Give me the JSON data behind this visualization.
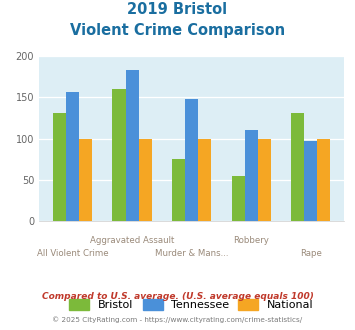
{
  "title_line1": "2019 Bristol",
  "title_line2": "Violent Crime Comparison",
  "bristol": [
    131,
    160,
    75,
    55,
    131
  ],
  "tennessee": [
    157,
    183,
    148,
    111,
    97
  ],
  "national": [
    100,
    100,
    100,
    100,
    100
  ],
  "bristol_color": "#7cba3a",
  "tennessee_color": "#4a90d9",
  "national_color": "#f5a623",
  "ylim": [
    0,
    200
  ],
  "yticks": [
    0,
    50,
    100,
    150,
    200
  ],
  "chart_bg": "#ddeef5",
  "legend_labels": [
    "Bristol",
    "Tennessee",
    "National"
  ],
  "cat_top": [
    [
      1,
      "Aggravated Assault"
    ],
    [
      3,
      "Robbery"
    ]
  ],
  "cat_bot": [
    [
      0,
      "All Violent Crime"
    ],
    [
      2,
      "Murder & Mans..."
    ],
    [
      4,
      "Rape"
    ]
  ],
  "footnote1": "Compared to U.S. average. (U.S. average equals 100)",
  "footnote2": "© 2025 CityRating.com - https://www.cityrating.com/crime-statistics/",
  "title_color": "#1a6ea0",
  "footnote1_color": "#c0392b",
  "footnote2_color": "#7a7a7a",
  "xlabel_color": "#9a8a7a"
}
